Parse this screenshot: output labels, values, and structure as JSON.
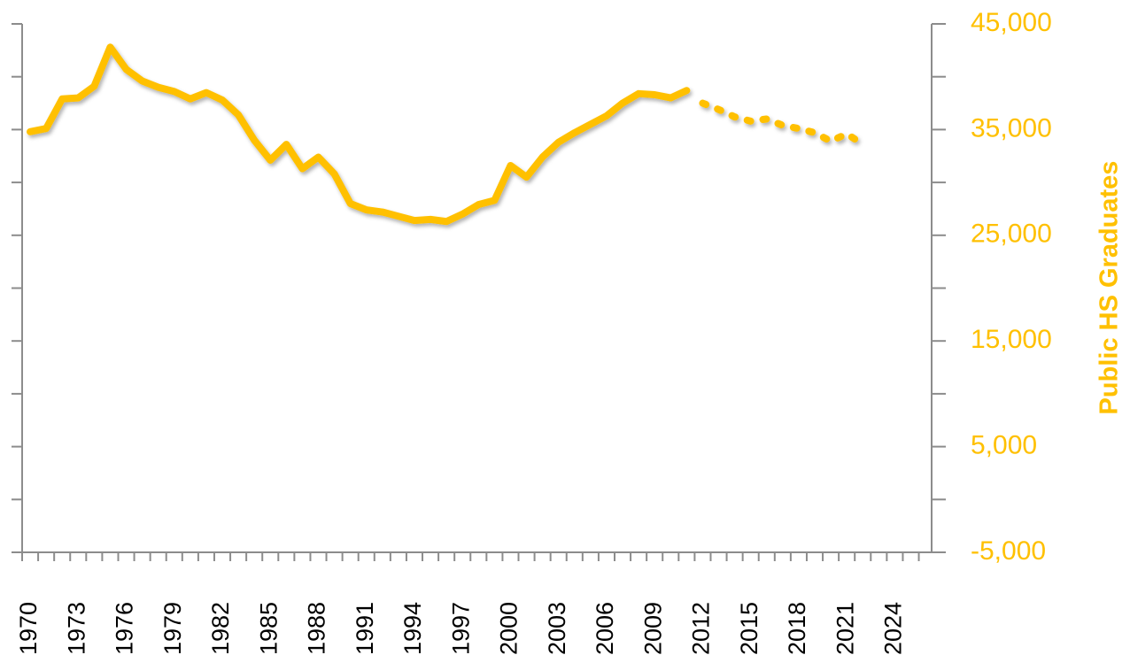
{
  "chart_data": {
    "type": "line",
    "y_axis_label": "Public HS Graduates",
    "x": [
      1970,
      1971,
      1972,
      1973,
      1974,
      1975,
      1976,
      1977,
      1978,
      1979,
      1980,
      1981,
      1982,
      1983,
      1984,
      1985,
      1986,
      1987,
      1988,
      1989,
      1990,
      1991,
      1992,
      1993,
      1994,
      1995,
      1996,
      1997,
      1998,
      1999,
      2000,
      2001,
      2002,
      2003,
      2004,
      2005,
      2006,
      2007,
      2008,
      2009,
      2010,
      2011,
      2012,
      2013,
      2014,
      2015,
      2016,
      2017,
      2018,
      2019,
      2020,
      2021,
      2022
    ],
    "series": [
      {
        "color": "#FFC000",
        "dashed": false,
        "values": [
          34800,
          35100,
          37900,
          38000,
          39100,
          42800,
          40700,
          39600,
          39000,
          38600,
          37900,
          38500,
          37800,
          36400,
          34000,
          32100,
          33600,
          31300,
          32400,
          30800,
          28000,
          27400,
          27200,
          26800,
          26400,
          26500,
          26300,
          27000,
          27900,
          28300,
          31600,
          30500,
          32400,
          33800,
          34700,
          35500,
          36300,
          37500,
          38400,
          38300,
          38000,
          38700,
          null,
          null,
          null,
          null,
          null,
          null,
          null,
          null,
          null,
          null,
          null
        ]
      },
      {
        "color": "#FFC000",
        "dashed": true,
        "values": [
          null,
          null,
          null,
          null,
          null,
          null,
          null,
          null,
          null,
          null,
          null,
          null,
          null,
          null,
          null,
          null,
          null,
          null,
          null,
          null,
          null,
          null,
          null,
          null,
          null,
          null,
          null,
          null,
          null,
          null,
          null,
          null,
          null,
          null,
          null,
          null,
          null,
          null,
          null,
          null,
          null,
          null,
          37500,
          36900,
          36200,
          35800,
          36000,
          35400,
          35100,
          34700,
          33900,
          34600,
          33600
        ]
      }
    ],
    "xlim": [
      1969.5,
      2026.3
    ],
    "xticks": [
      1970,
      1973,
      1976,
      1979,
      1982,
      1985,
      1988,
      1991,
      1994,
      1997,
      2000,
      2003,
      2006,
      2009,
      2012,
      2015,
      2018,
      2021,
      2024
    ],
    "x_minor_ticks": [
      1969.5,
      1970.5,
      1971.5,
      1972.5,
      1973.5,
      1974.5,
      1975.5,
      1976.5,
      1977.5,
      1978.5,
      1979.5,
      1980.5,
      1981.5,
      1982.5,
      1983.5,
      1984.5,
      1985.5,
      1986.5,
      1987.5,
      1988.5,
      1989.5,
      1990.5,
      1991.5,
      1992.5,
      1993.5,
      1994.5,
      1995.5,
      1996.5,
      1997.5,
      1998.5,
      1999.5,
      2000.5,
      2001.5,
      2002.5,
      2003.5,
      2004.5,
      2005.5,
      2006.5,
      2007.5,
      2008.5,
      2009.5,
      2010.5,
      2011.5,
      2012.5,
      2013.5,
      2014.5,
      2015.5,
      2016.5,
      2017.5,
      2018.5,
      2019.5,
      2020.5,
      2021.5,
      2022.5,
      2023.5,
      2024.5,
      2025.5
    ],
    "ylim": [
      -5000,
      45000
    ],
    "yticks": [
      {
        "value": -5000,
        "label": "-5,000"
      },
      {
        "value": 5000,
        "label": "5,000"
      },
      {
        "value": 15000,
        "label": "15,000"
      },
      {
        "value": 25000,
        "label": "25,000"
      },
      {
        "value": 35000,
        "label": "35,000"
      },
      {
        "value": 45000,
        "label": "45,000"
      }
    ],
    "y_minor_ticks": [
      0,
      10000,
      20000,
      30000,
      40000
    ],
    "axis_color": "#8c8c8c",
    "label_color": "#FFC000"
  }
}
